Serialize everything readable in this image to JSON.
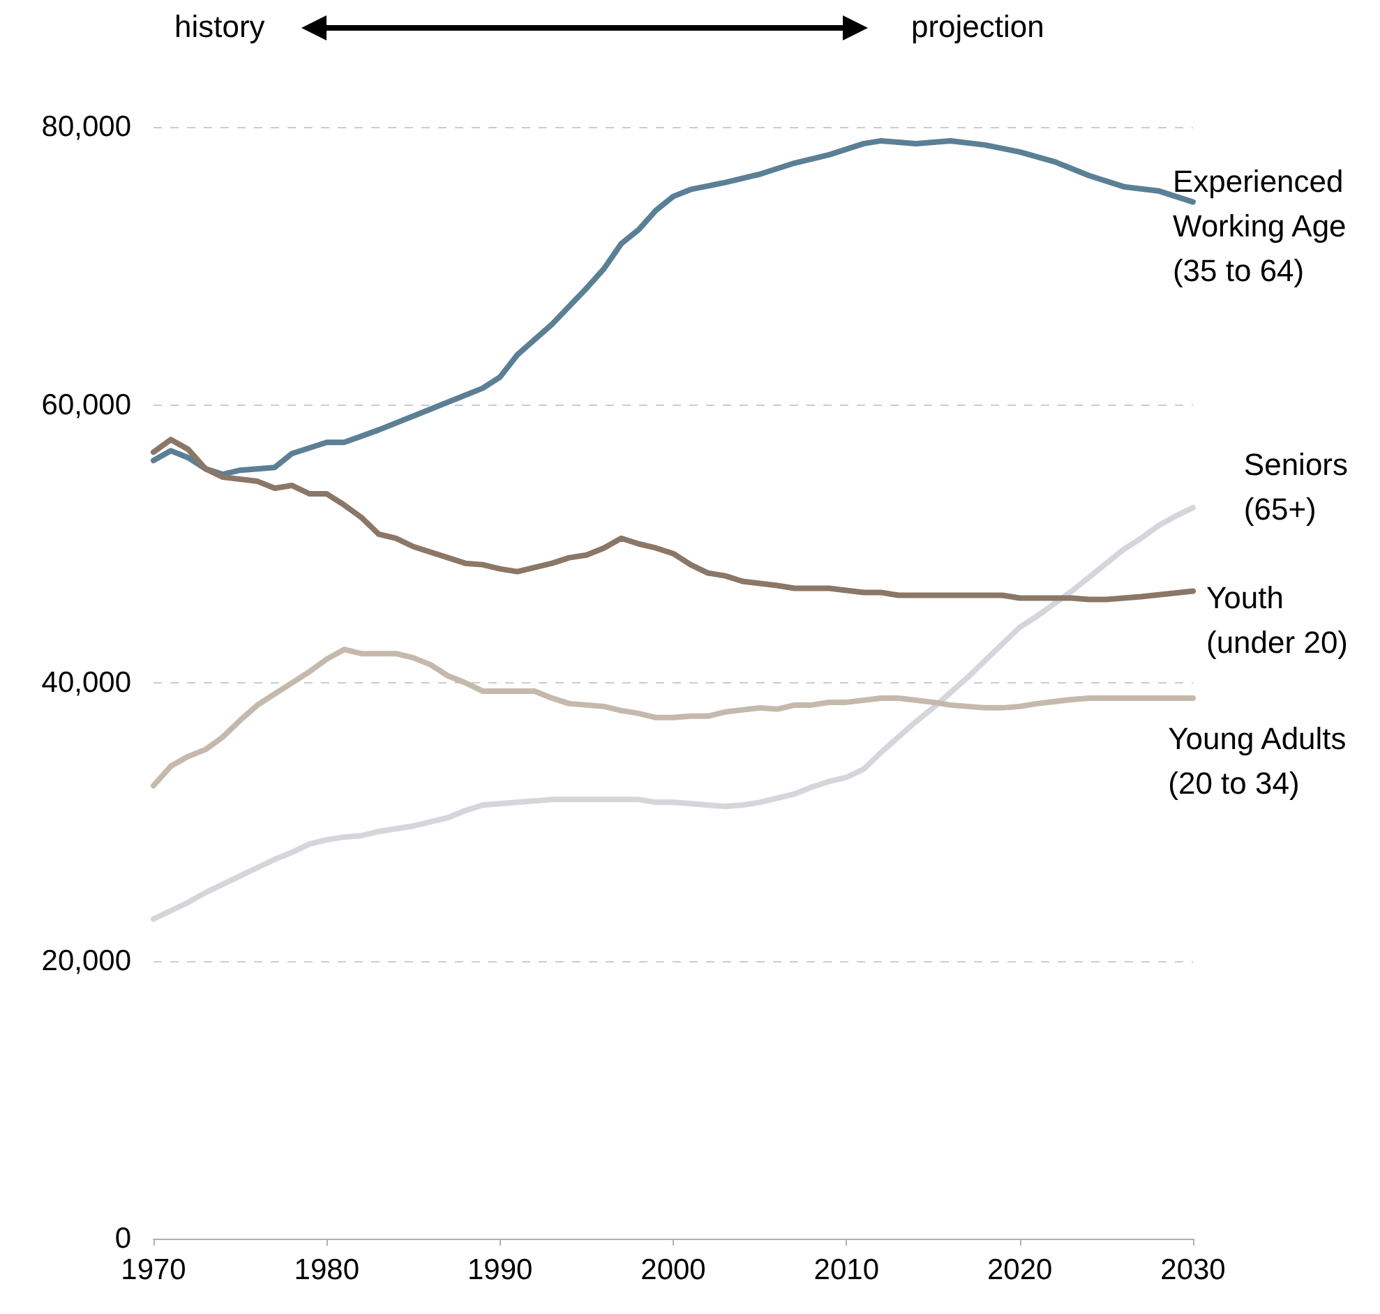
{
  "chart_data": {
    "type": "line",
    "annotations": [
      "history",
      "projection"
    ],
    "xlim": [
      1970,
      2030
    ],
    "xticks": [
      1970,
      1980,
      1990,
      2000,
      2010,
      2020,
      2030
    ],
    "ylim": [
      0,
      80000
    ],
    "yticks": [
      {
        "value": 0,
        "label": "0"
      },
      {
        "value": 20000,
        "label": "20,000"
      },
      {
        "value": 40000,
        "label": "40,000"
      },
      {
        "value": 60000,
        "label": "60,000"
      },
      {
        "value": 80000,
        "label": "80,000"
      }
    ],
    "grid": "y",
    "legend": false,
    "marker": "none",
    "line_style": "solid",
    "series": [
      {
        "name": "Experienced\nWorking Age\n(35 to 64)",
        "color": "#5b7f95",
        "x": [
          1970,
          1971,
          1972,
          1973,
          1974,
          1975,
          1977,
          1978,
          1980,
          1981,
          1983,
          1985,
          1987,
          1989,
          1990,
          1991,
          1993,
          1995,
          1996,
          1997,
          1998,
          1999,
          2000,
          2001,
          2003,
          2005,
          2007,
          2009,
          2011,
          2012,
          2014,
          2016,
          2018,
          2020,
          2022,
          2024,
          2026,
          2028,
          2030
        ],
        "values": [
          56000,
          56700,
          56200,
          55400,
          55000,
          55300,
          55500,
          56500,
          57300,
          57300,
          58200,
          59200,
          60200,
          61200,
          62000,
          63600,
          65800,
          68400,
          69800,
          71600,
          72600,
          74000,
          75000,
          75500,
          76000,
          76600,
          77400,
          78000,
          78800,
          79000,
          78800,
          79000,
          78700,
          78200,
          77500,
          76500,
          75700,
          75400,
          74600
        ]
      },
      {
        "name": "Seniors\n(65+)",
        "color": "#d5d5dc",
        "x": [
          1970,
          1971,
          1972,
          1973,
          1974,
          1975,
          1976,
          1977,
          1978,
          1979,
          1980,
          1981,
          1982,
          1983,
          1985,
          1987,
          1988,
          1989,
          1990,
          1991,
          1993,
          1998,
          1999,
          2000,
          2003,
          2004,
          2005,
          2006,
          2007,
          2008,
          2009,
          2010,
          2011,
          2012,
          2013,
          2014,
          2015,
          2016,
          2017,
          2018,
          2019,
          2020,
          2021,
          2022,
          2023,
          2024,
          2025,
          2026,
          2027,
          2028,
          2029,
          2030
        ],
        "values": [
          23000,
          23600,
          24200,
          24900,
          25500,
          26100,
          26700,
          27300,
          27800,
          28400,
          28700,
          28900,
          29000,
          29300,
          29700,
          30300,
          30800,
          31200,
          31300,
          31400,
          31600,
          31600,
          31400,
          31400,
          31100,
          31200,
          31400,
          31700,
          32000,
          32500,
          32900,
          33200,
          33800,
          35000,
          36100,
          37200,
          38200,
          39300,
          40400,
          41600,
          42800,
          44000,
          44800,
          45700,
          46600,
          47600,
          48600,
          49600,
          50400,
          51300,
          52000,
          52600
        ]
      },
      {
        "name": "Youth\n(under 20)",
        "color": "#8a7767",
        "x": [
          1970,
          1971,
          1972,
          1973,
          1974,
          1976,
          1977,
          1978,
          1979,
          1980,
          1981,
          1982,
          1983,
          1984,
          1985,
          1987,
          1988,
          1989,
          1990,
          1991,
          1993,
          1994,
          1995,
          1996,
          1997,
          1998,
          1999,
          2000,
          2001,
          2002,
          2003,
          2004,
          2006,
          2007,
          2009,
          2011,
          2012,
          2013,
          2019,
          2020,
          2023,
          2024,
          2025,
          2026,
          2027,
          2030
        ],
        "values": [
          56600,
          57500,
          56800,
          55400,
          54800,
          54500,
          54000,
          54200,
          53600,
          53600,
          52800,
          51900,
          50700,
          50400,
          49800,
          49000,
          48600,
          48500,
          48200,
          48000,
          48600,
          49000,
          49200,
          49700,
          50400,
          50000,
          49700,
          49300,
          48500,
          47900,
          47700,
          47300,
          47000,
          46800,
          46800,
          46500,
          46500,
          46300,
          46300,
          46100,
          46100,
          46000,
          46000,
          46100,
          46200,
          46600
        ]
      },
      {
        "name": "Young Adults\n(20 to 34)",
        "color": "#c5b9ad",
        "x": [
          1970,
          1971,
          1972,
          1973,
          1974,
          1975,
          1976,
          1977,
          1978,
          1979,
          1980,
          1981,
          1982,
          1984,
          1985,
          1986,
          1987,
          1988,
          1989,
          1992,
          1993,
          1994,
          1996,
          1997,
          1998,
          1999,
          2000,
          2001,
          2002,
          2003,
          2005,
          2006,
          2007,
          2008,
          2009,
          2010,
          2012,
          2013,
          2015,
          2016,
          2018,
          2019,
          2020,
          2021,
          2023,
          2024,
          2030
        ],
        "values": [
          32600,
          34000,
          34700,
          35200,
          36100,
          37300,
          38400,
          39200,
          40000,
          40800,
          41700,
          42400,
          42100,
          42100,
          41800,
          41300,
          40500,
          40000,
          39400,
          39400,
          38900,
          38500,
          38300,
          38000,
          37800,
          37500,
          37500,
          37600,
          37600,
          37900,
          38200,
          38100,
          38400,
          38400,
          38600,
          38600,
          38900,
          38900,
          38600,
          38400,
          38200,
          38200,
          38300,
          38500,
          38800,
          38900,
          38900
        ]
      }
    ]
  }
}
